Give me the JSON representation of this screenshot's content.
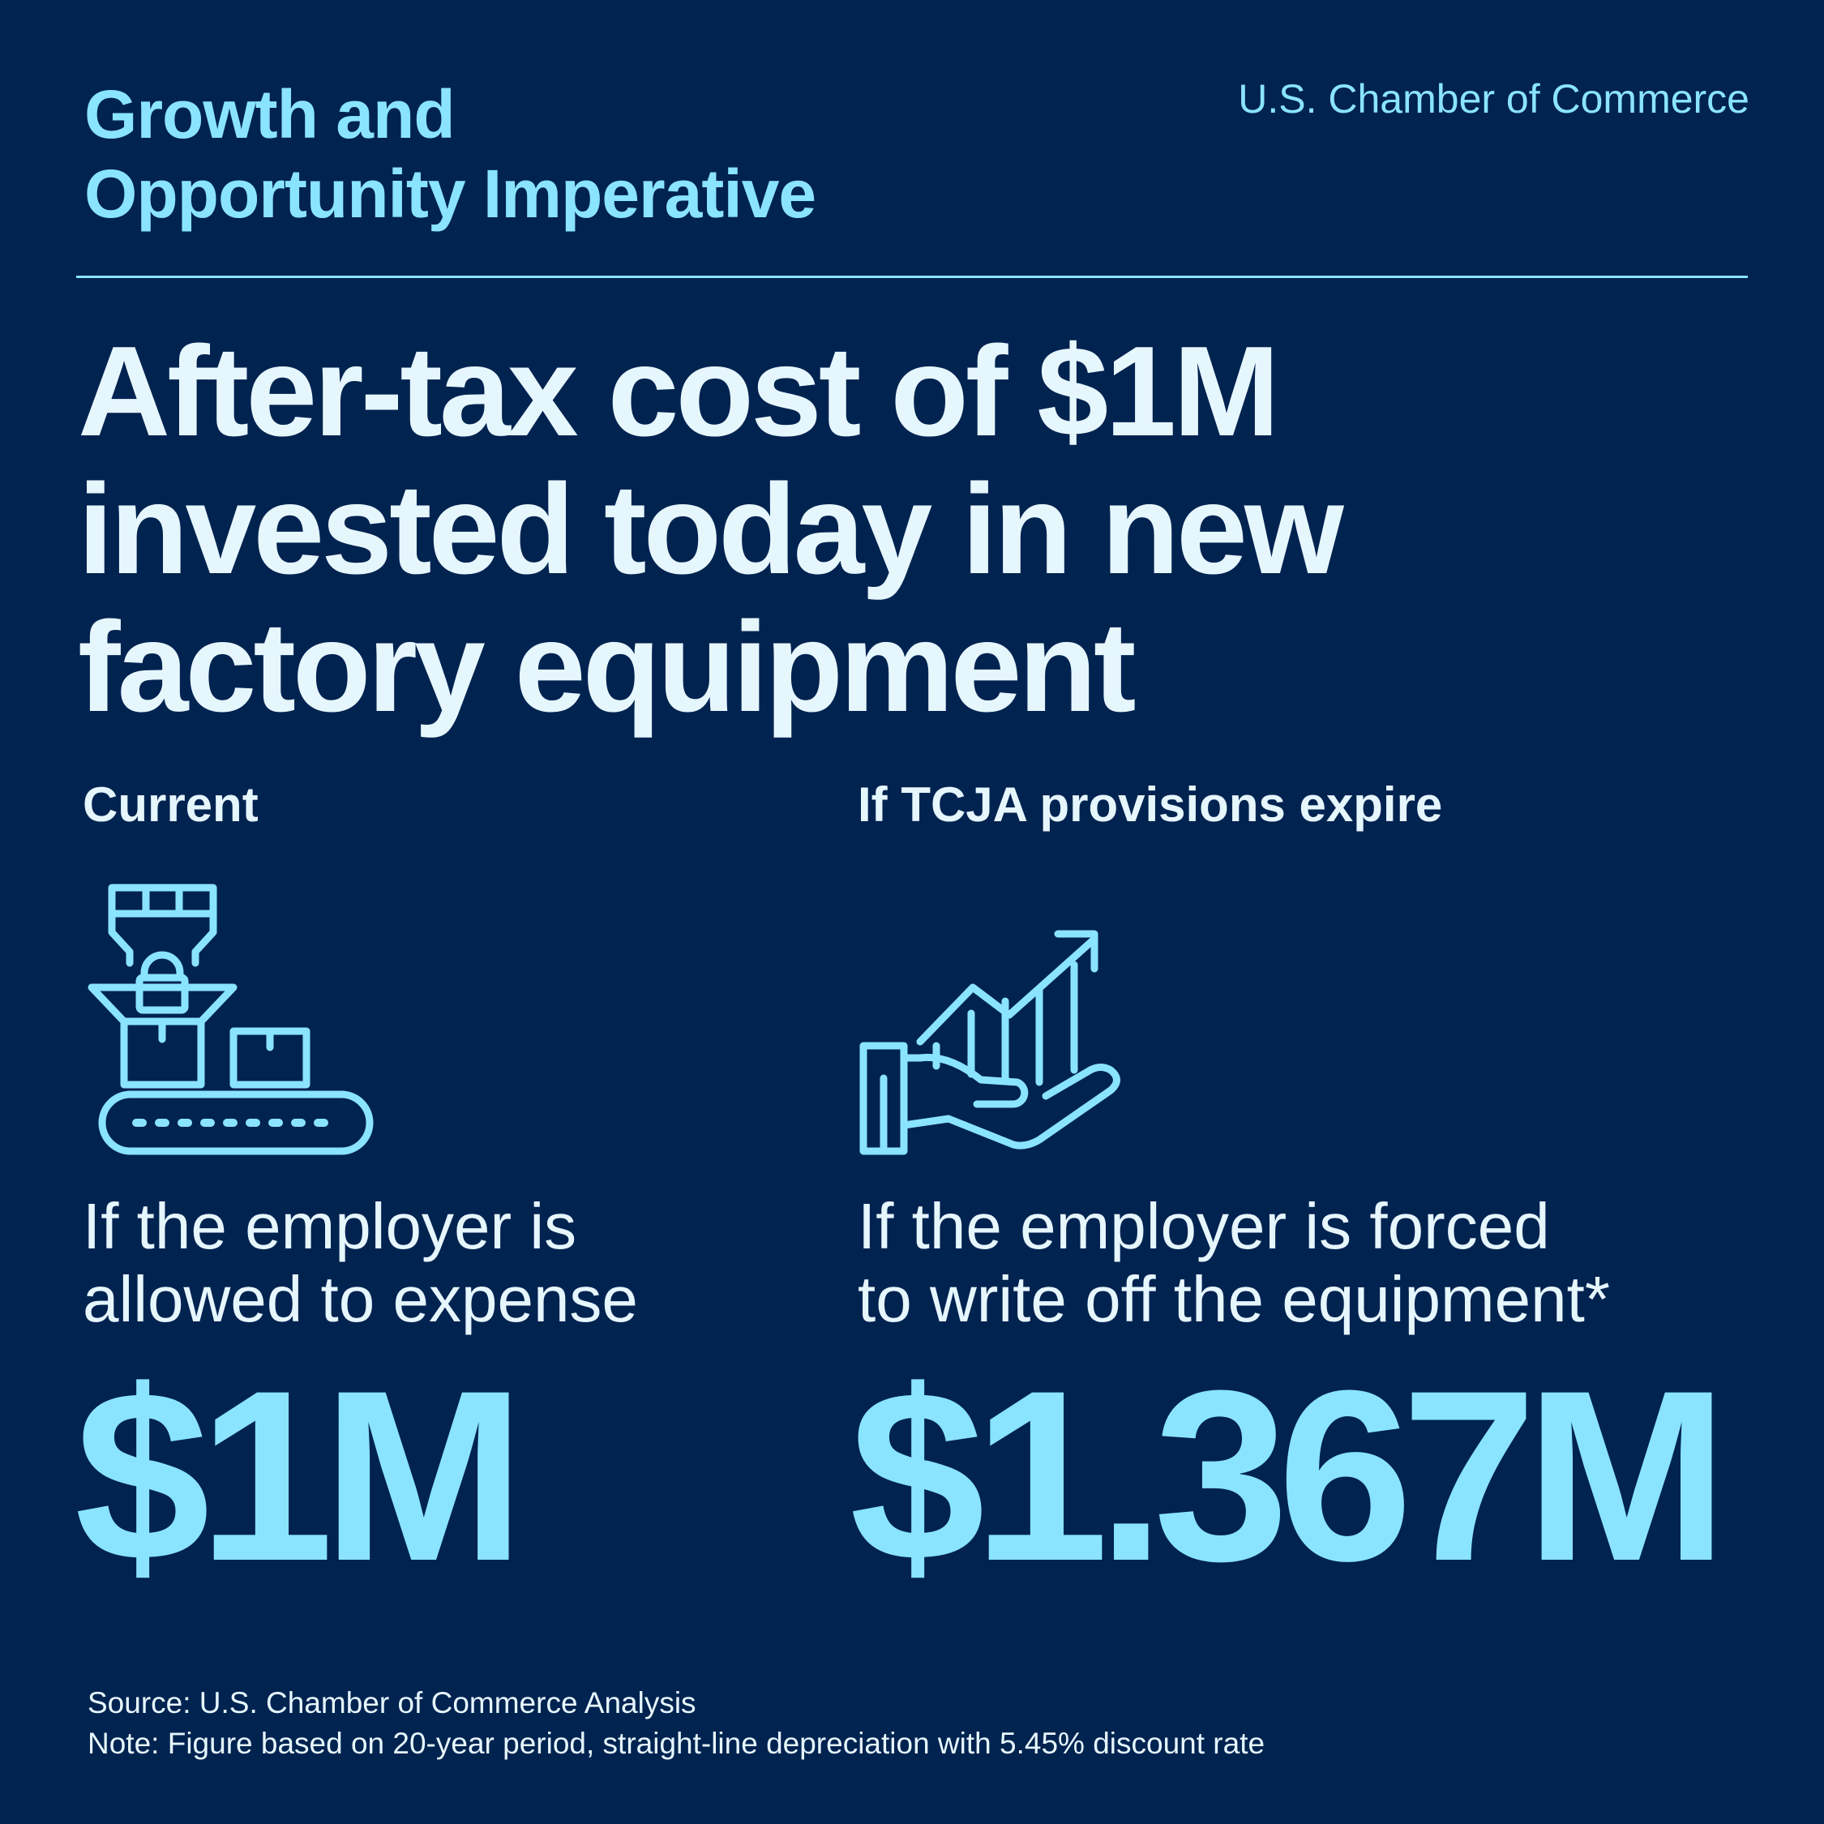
{
  "header": {
    "series_title_line1": "Growth and",
    "series_title_line2": "Opportunity Imperative",
    "organization": "U.S. Chamber of Commerce"
  },
  "headline": {
    "line1": "After-tax cost of $1M",
    "line2": "invested today in new",
    "line3": "factory equipment"
  },
  "current": {
    "heading": "Current",
    "icon": "conveyor-factory-icon",
    "description_line1": "If the employer is",
    "description_line2": "allowed to expense",
    "value": "$1M"
  },
  "expire": {
    "heading": "If TCJA provisions expire",
    "icon": "hand-growth-chart-icon",
    "description_line1": "If the employer is forced",
    "description_line2": "to write off the equipment*",
    "value": "$1.367M"
  },
  "footer": {
    "source": "Source: U.S. Chamber of Commerce Analysis",
    "note": "Note: Figure based on 20-year period, straight-line depreciation with 5.45% discount rate"
  },
  "colors": {
    "background": "#012350",
    "accent": "#8ae4ff",
    "text": "#e6f6fd"
  }
}
